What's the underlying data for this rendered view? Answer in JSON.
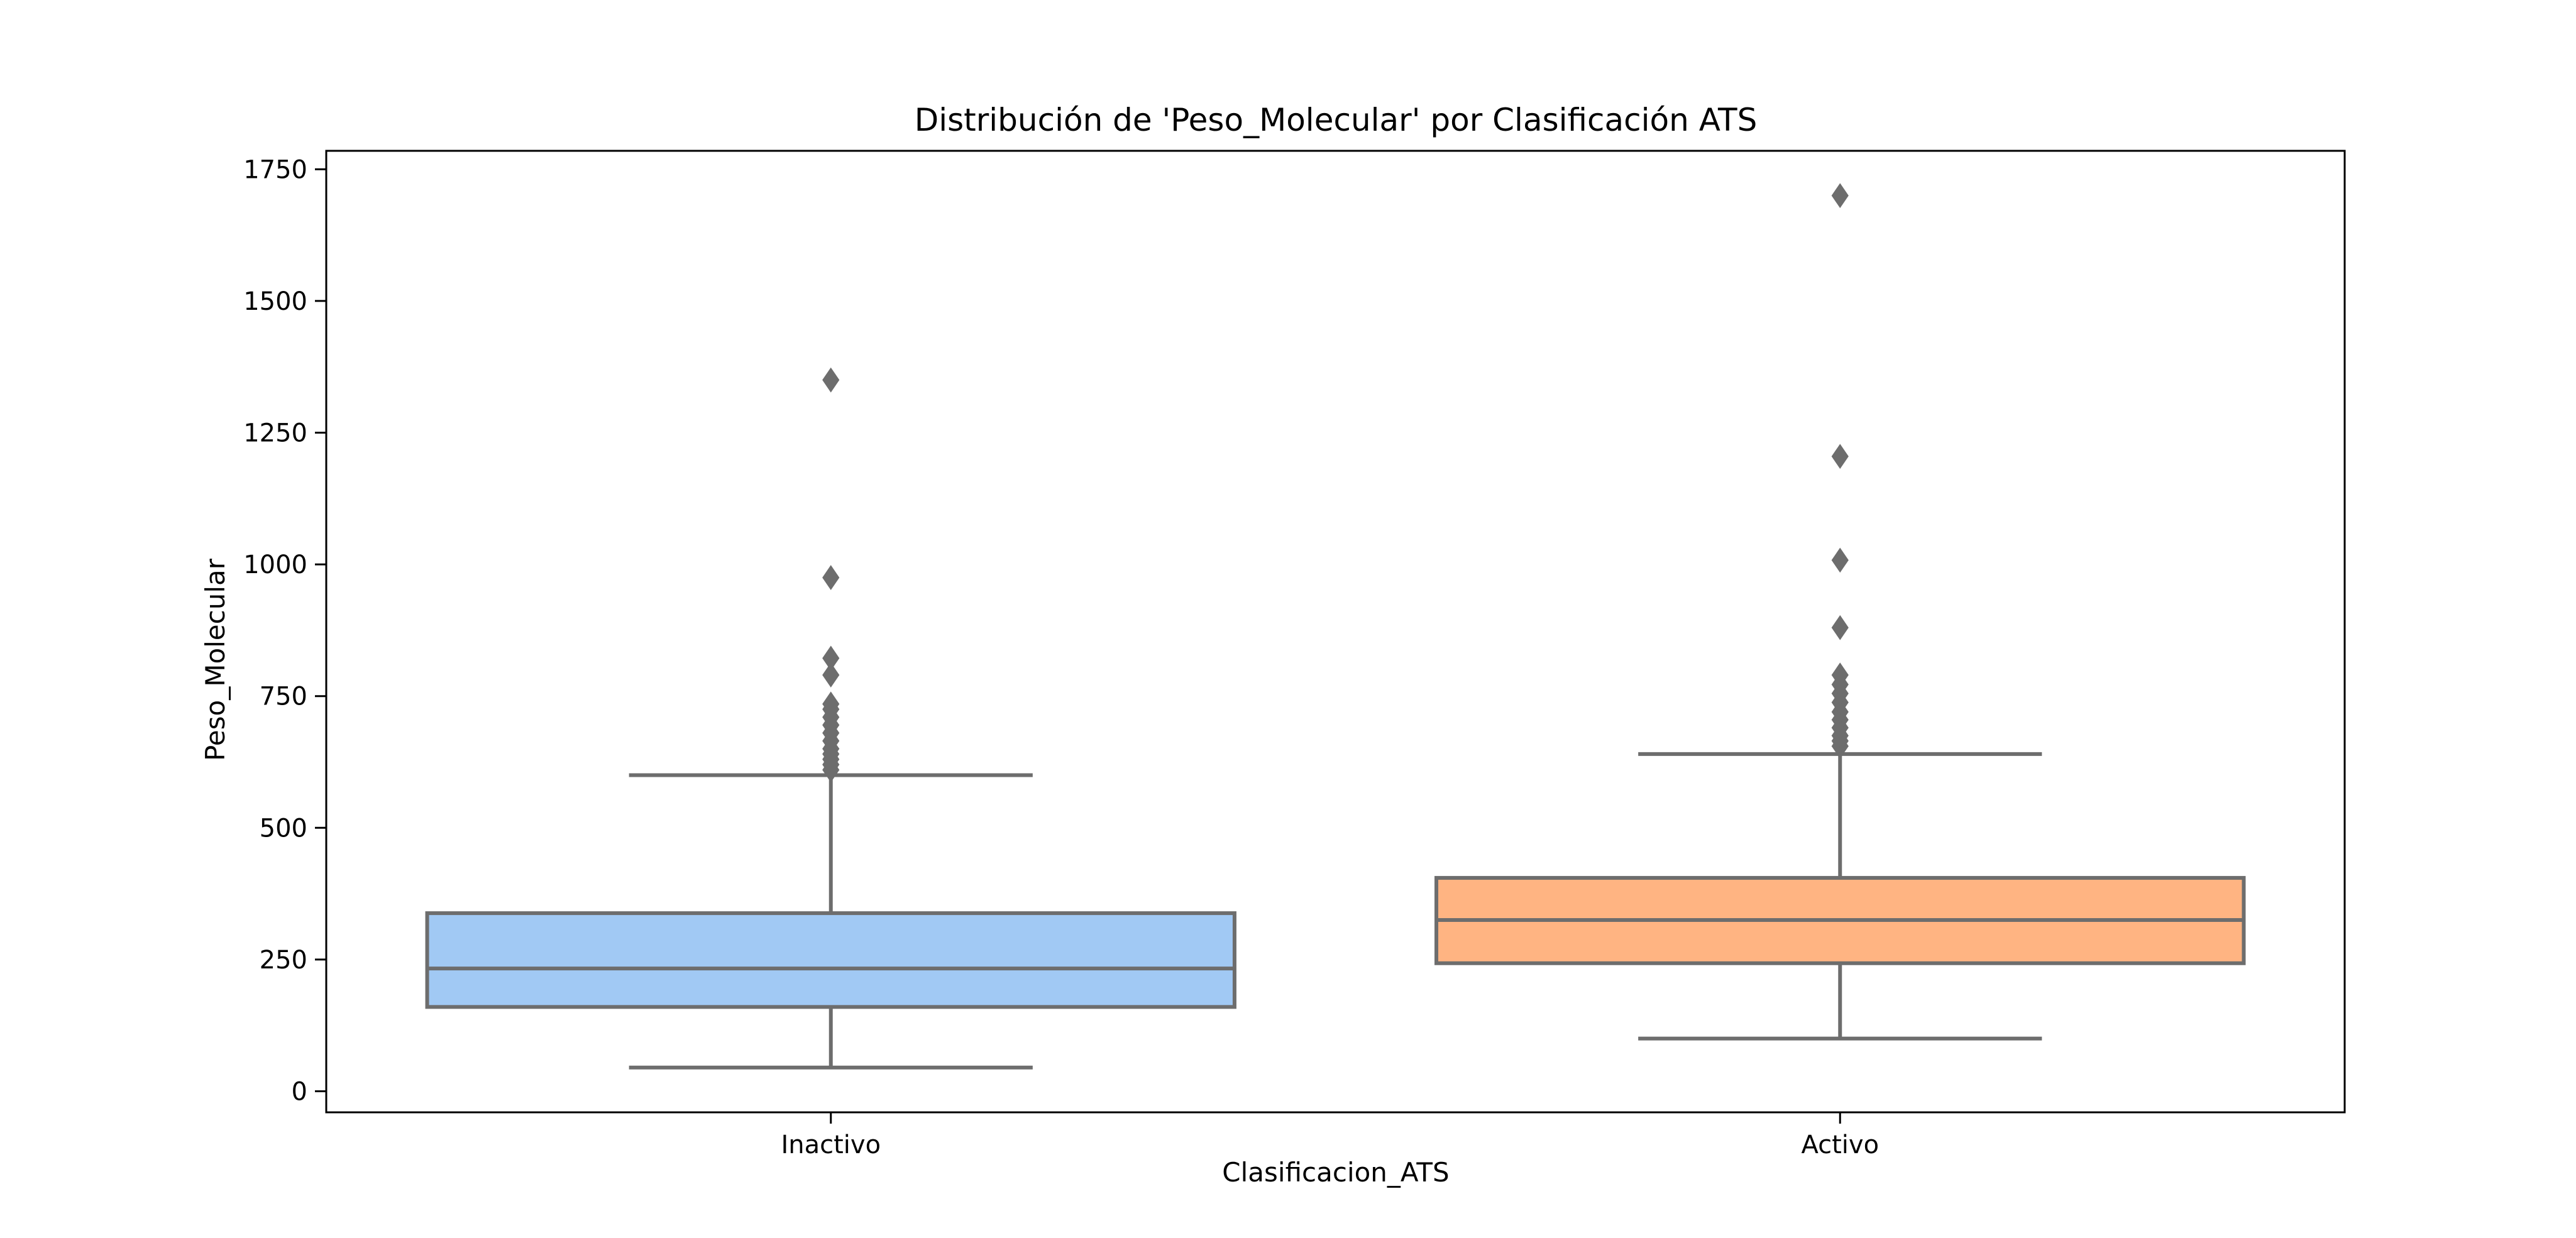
{
  "chart_data": {
    "type": "box",
    "title": "Distribución de 'Peso_Molecular' por Clasificación ATS",
    "xlabel": "Clasificacion_ATS",
    "ylabel": "Peso_Molecular",
    "ylim": [
      -40,
      1785
    ],
    "yticks": [
      0,
      250,
      500,
      750,
      1000,
      1250,
      1500,
      1750
    ],
    "grid": false,
    "categories": [
      "Inactivo",
      "Activo"
    ],
    "series": [
      {
        "category": "Inactivo",
        "color": "#a1c9f4",
        "whisker_low": 45,
        "q1": 160,
        "median": 233,
        "q3": 338,
        "whisker_high": 600,
        "outliers": [
          610,
          620,
          630,
          640,
          650,
          665,
          680,
          695,
          710,
          725,
          735,
          790,
          822,
          975,
          1350
        ]
      },
      {
        "category": "Activo",
        "color": "#ffb482",
        "whisker_low": 100,
        "q1": 243,
        "median": 325,
        "q3": 405,
        "whisker_high": 640,
        "outliers": [
          655,
          665,
          675,
          690,
          705,
          720,
          738,
          755,
          772,
          790,
          880,
          1008,
          1205,
          1700
        ]
      }
    ],
    "box_edge_color": "#6d6d6d"
  }
}
